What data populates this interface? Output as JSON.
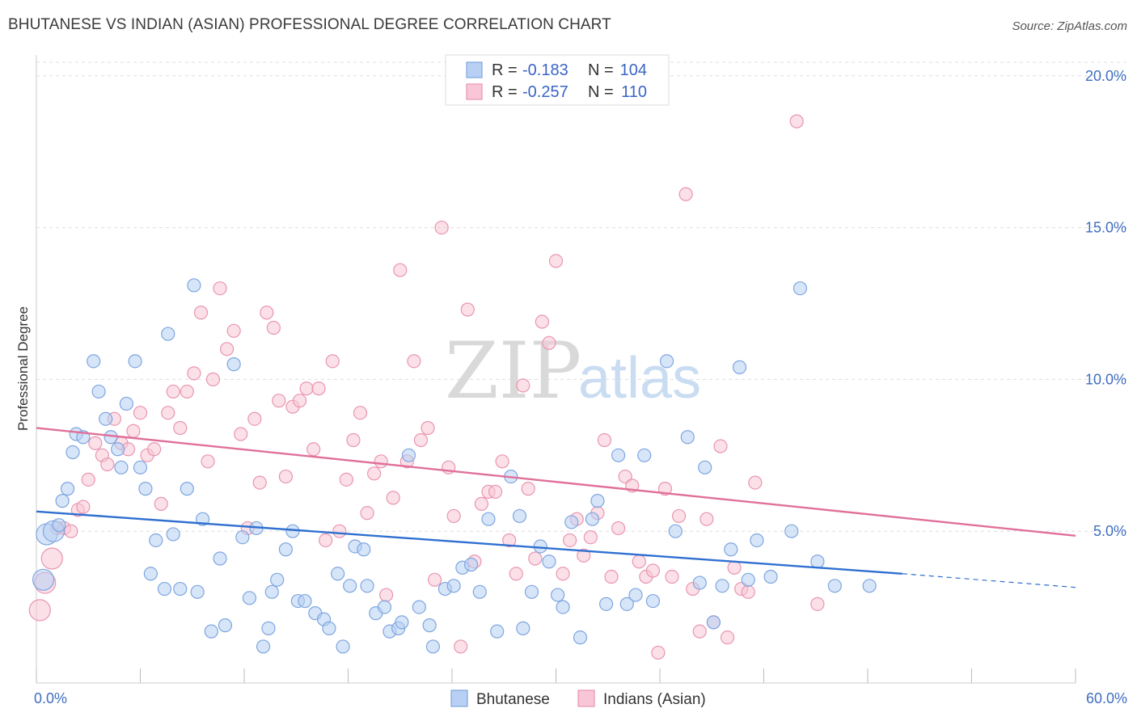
{
  "title": "BHUTANESE VS INDIAN (ASIAN) PROFESSIONAL DEGREE CORRELATION CHART",
  "source": "Source: ZipAtlas.com",
  "watermark": {
    "zip": "ZIP",
    "atlas": "atlas"
  },
  "colors": {
    "blue_fill": "#b7d0f3",
    "blue_stroke": "#7ea6e0",
    "blue_line": "#2f6fd0",
    "pink_fill": "#f8c6d6",
    "pink_stroke": "#e995b1",
    "pink_line": "#e0709a",
    "grid": "#dddddd",
    "tick_text": "#3f6fc0"
  },
  "legend": {
    "rows": [
      {
        "r_label": "R =",
        "r_value": "-0.183",
        "n_label": "N =",
        "n_value": "104",
        "color": "blue"
      },
      {
        "r_label": "R =",
        "r_value": "-0.257",
        "n_label": "N =",
        "n_value": "110",
        "color": "pink"
      }
    ]
  },
  "chart_data": {
    "type": "scatter",
    "title": "BHUTANESE VS INDIAN (ASIAN) PROFESSIONAL DEGREE CORRELATION CHART",
    "xlabel": "",
    "ylabel": "Professional Degree",
    "xlim": [
      0,
      60
    ],
    "ylim": [
      0,
      20.5
    ],
    "x_tick_labels": [
      "0.0%",
      "60.0%"
    ],
    "y_ticks": [
      5,
      10,
      15,
      20
    ],
    "y_tick_labels": [
      "5.0%",
      "10.0%",
      "15.0%",
      "20.0%"
    ],
    "grid": true,
    "legend_position": "bottom",
    "series": [
      {
        "name": "Bhutanese",
        "color": "blue",
        "r": -0.183,
        "n": 104,
        "trend": {
          "x": [
            0,
            50
          ],
          "y": [
            5.65,
            3.6
          ],
          "dashed_to": [
            60,
            3.15
          ]
        },
        "points": [
          [
            0.4,
            3.4
          ],
          [
            0.6,
            4.9
          ],
          [
            1.0,
            5.0
          ],
          [
            1.3,
            5.2
          ],
          [
            1.5,
            6.0
          ],
          [
            1.8,
            6.4
          ],
          [
            2.1,
            7.6
          ],
          [
            2.3,
            8.2
          ],
          [
            2.7,
            8.1
          ],
          [
            3.3,
            10.6
          ],
          [
            3.6,
            9.6
          ],
          [
            4.0,
            8.7
          ],
          [
            4.3,
            8.1
          ],
          [
            4.7,
            7.7
          ],
          [
            4.9,
            7.1
          ],
          [
            5.2,
            9.2
          ],
          [
            5.7,
            10.6
          ],
          [
            6.0,
            7.1
          ],
          [
            6.3,
            6.4
          ],
          [
            6.6,
            3.6
          ],
          [
            6.9,
            4.7
          ],
          [
            7.4,
            3.1
          ],
          [
            7.6,
            11.5
          ],
          [
            7.9,
            4.9
          ],
          [
            8.3,
            3.1
          ],
          [
            8.7,
            6.4
          ],
          [
            9.1,
            13.1
          ],
          [
            9.3,
            3.0
          ],
          [
            9.6,
            5.4
          ],
          [
            10.1,
            1.7
          ],
          [
            10.6,
            4.1
          ],
          [
            10.9,
            1.9
          ],
          [
            11.4,
            10.5
          ],
          [
            11.9,
            4.8
          ],
          [
            12.3,
            2.8
          ],
          [
            12.7,
            5.1
          ],
          [
            13.1,
            1.2
          ],
          [
            13.4,
            1.8
          ],
          [
            13.6,
            3.0
          ],
          [
            13.9,
            3.4
          ],
          [
            14.4,
            4.4
          ],
          [
            14.8,
            5.0
          ],
          [
            15.1,
            2.7
          ],
          [
            15.5,
            2.7
          ],
          [
            16.1,
            2.3
          ],
          [
            16.6,
            2.1
          ],
          [
            16.9,
            1.8
          ],
          [
            17.4,
            3.6
          ],
          [
            17.7,
            1.2
          ],
          [
            18.1,
            3.2
          ],
          [
            18.4,
            4.5
          ],
          [
            18.9,
            4.4
          ],
          [
            19.1,
            3.2
          ],
          [
            19.6,
            2.3
          ],
          [
            20.1,
            2.5
          ],
          [
            20.4,
            1.7
          ],
          [
            20.9,
            1.8
          ],
          [
            21.1,
            2.0
          ],
          [
            21.5,
            7.5
          ],
          [
            22.1,
            2.5
          ],
          [
            22.7,
            1.9
          ],
          [
            22.9,
            1.2
          ],
          [
            23.6,
            3.1
          ],
          [
            24.1,
            3.2
          ],
          [
            24.6,
            3.8
          ],
          [
            25.1,
            3.9
          ],
          [
            25.6,
            3.0
          ],
          [
            26.1,
            5.4
          ],
          [
            26.6,
            1.7
          ],
          [
            27.4,
            6.8
          ],
          [
            27.9,
            5.5
          ],
          [
            28.1,
            1.8
          ],
          [
            28.6,
            3.0
          ],
          [
            29.1,
            4.5
          ],
          [
            29.6,
            4.0
          ],
          [
            30.1,
            2.9
          ],
          [
            30.4,
            2.5
          ],
          [
            30.9,
            5.3
          ],
          [
            31.4,
            1.5
          ],
          [
            32.1,
            5.4
          ],
          [
            32.4,
            6.0
          ],
          [
            32.9,
            2.6
          ],
          [
            33.6,
            7.5
          ],
          [
            34.1,
            2.6
          ],
          [
            34.6,
            2.9
          ],
          [
            35.1,
            7.5
          ],
          [
            35.6,
            2.7
          ],
          [
            36.4,
            10.6
          ],
          [
            36.9,
            5.0
          ],
          [
            37.6,
            8.1
          ],
          [
            38.3,
            3.3
          ],
          [
            38.6,
            7.1
          ],
          [
            39.1,
            2.0
          ],
          [
            39.6,
            3.2
          ],
          [
            40.1,
            4.4
          ],
          [
            40.6,
            10.4
          ],
          [
            41.1,
            3.4
          ],
          [
            41.6,
            4.7
          ],
          [
            42.4,
            3.5
          ],
          [
            43.6,
            5.0
          ],
          [
            44.1,
            13.0
          ],
          [
            45.1,
            4.0
          ],
          [
            46.1,
            3.2
          ],
          [
            48.1,
            3.2
          ]
        ]
      },
      {
        "name": "Indians (Asian)",
        "color": "pink",
        "r": -0.257,
        "n": 110,
        "trend": {
          "x": [
            0,
            60
          ],
          "y": [
            8.4,
            4.85
          ]
        },
        "points": [
          [
            0.2,
            2.4
          ],
          [
            0.5,
            3.3
          ],
          [
            0.9,
            4.1
          ],
          [
            1.2,
            5.1
          ],
          [
            1.6,
            5.1
          ],
          [
            2.0,
            5.0
          ],
          [
            2.4,
            5.7
          ],
          [
            2.7,
            5.8
          ],
          [
            3.0,
            6.7
          ],
          [
            3.4,
            7.9
          ],
          [
            3.8,
            7.5
          ],
          [
            4.1,
            7.2
          ],
          [
            4.5,
            8.7
          ],
          [
            4.9,
            7.9
          ],
          [
            5.3,
            7.7
          ],
          [
            5.6,
            8.3
          ],
          [
            6.0,
            8.9
          ],
          [
            6.4,
            7.5
          ],
          [
            6.8,
            7.7
          ],
          [
            7.2,
            5.9
          ],
          [
            7.6,
            8.9
          ],
          [
            7.9,
            9.6
          ],
          [
            8.3,
            8.4
          ],
          [
            8.7,
            9.6
          ],
          [
            9.1,
            10.2
          ],
          [
            9.5,
            12.2
          ],
          [
            9.9,
            7.3
          ],
          [
            10.2,
            10.0
          ],
          [
            10.6,
            13.0
          ],
          [
            11.0,
            11.0
          ],
          [
            11.4,
            11.6
          ],
          [
            11.8,
            8.2
          ],
          [
            12.2,
            5.1
          ],
          [
            12.6,
            8.7
          ],
          [
            12.9,
            6.6
          ],
          [
            13.3,
            12.2
          ],
          [
            13.7,
            11.7
          ],
          [
            14.0,
            9.3
          ],
          [
            14.4,
            6.8
          ],
          [
            14.8,
            9.1
          ],
          [
            15.2,
            9.3
          ],
          [
            15.6,
            9.7
          ],
          [
            16.0,
            7.7
          ],
          [
            16.3,
            9.7
          ],
          [
            16.7,
            4.7
          ],
          [
            17.1,
            10.6
          ],
          [
            17.5,
            5.0
          ],
          [
            17.9,
            6.7
          ],
          [
            18.3,
            8.0
          ],
          [
            18.7,
            8.9
          ],
          [
            19.1,
            5.6
          ],
          [
            19.5,
            6.9
          ],
          [
            19.9,
            7.3
          ],
          [
            20.2,
            2.9
          ],
          [
            20.6,
            6.1
          ],
          [
            21.0,
            13.6
          ],
          [
            21.4,
            7.3
          ],
          [
            21.8,
            10.6
          ],
          [
            22.2,
            8.0
          ],
          [
            22.6,
            8.4
          ],
          [
            23.0,
            3.4
          ],
          [
            23.4,
            15.0
          ],
          [
            23.8,
            7.1
          ],
          [
            24.1,
            5.5
          ],
          [
            24.5,
            1.2
          ],
          [
            24.9,
            12.3
          ],
          [
            25.3,
            4.0
          ],
          [
            25.7,
            5.9
          ],
          [
            26.1,
            6.3
          ],
          [
            26.5,
            6.3
          ],
          [
            26.9,
            7.3
          ],
          [
            27.3,
            4.7
          ],
          [
            27.7,
            3.6
          ],
          [
            28.1,
            9.8
          ],
          [
            28.4,
            6.4
          ],
          [
            28.8,
            4.1
          ],
          [
            29.2,
            11.9
          ],
          [
            29.6,
            11.2
          ],
          [
            30.0,
            13.9
          ],
          [
            30.4,
            3.6
          ],
          [
            30.8,
            4.7
          ],
          [
            31.2,
            5.4
          ],
          [
            31.6,
            4.2
          ],
          [
            32.0,
            4.8
          ],
          [
            32.4,
            5.6
          ],
          [
            32.8,
            8.0
          ],
          [
            33.2,
            3.5
          ],
          [
            33.6,
            5.1
          ],
          [
            34.0,
            6.8
          ],
          [
            34.4,
            6.5
          ],
          [
            34.8,
            4.0
          ],
          [
            35.2,
            3.5
          ],
          [
            35.6,
            3.7
          ],
          [
            35.9,
            1.0
          ],
          [
            36.3,
            6.4
          ],
          [
            36.7,
            3.5
          ],
          [
            37.1,
            5.5
          ],
          [
            37.5,
            16.1
          ],
          [
            37.9,
            3.1
          ],
          [
            38.3,
            1.7
          ],
          [
            38.7,
            5.4
          ],
          [
            39.1,
            2.0
          ],
          [
            39.5,
            7.8
          ],
          [
            39.9,
            1.5
          ],
          [
            40.3,
            3.8
          ],
          [
            40.7,
            3.1
          ],
          [
            41.1,
            3.0
          ],
          [
            41.5,
            6.6
          ],
          [
            43.9,
            18.5
          ],
          [
            45.1,
            2.6
          ]
        ]
      }
    ]
  },
  "bottom_legend": {
    "items": [
      {
        "label": "Bhutanese",
        "color": "blue"
      },
      {
        "label": "Indians (Asian)",
        "color": "pink"
      }
    ]
  }
}
